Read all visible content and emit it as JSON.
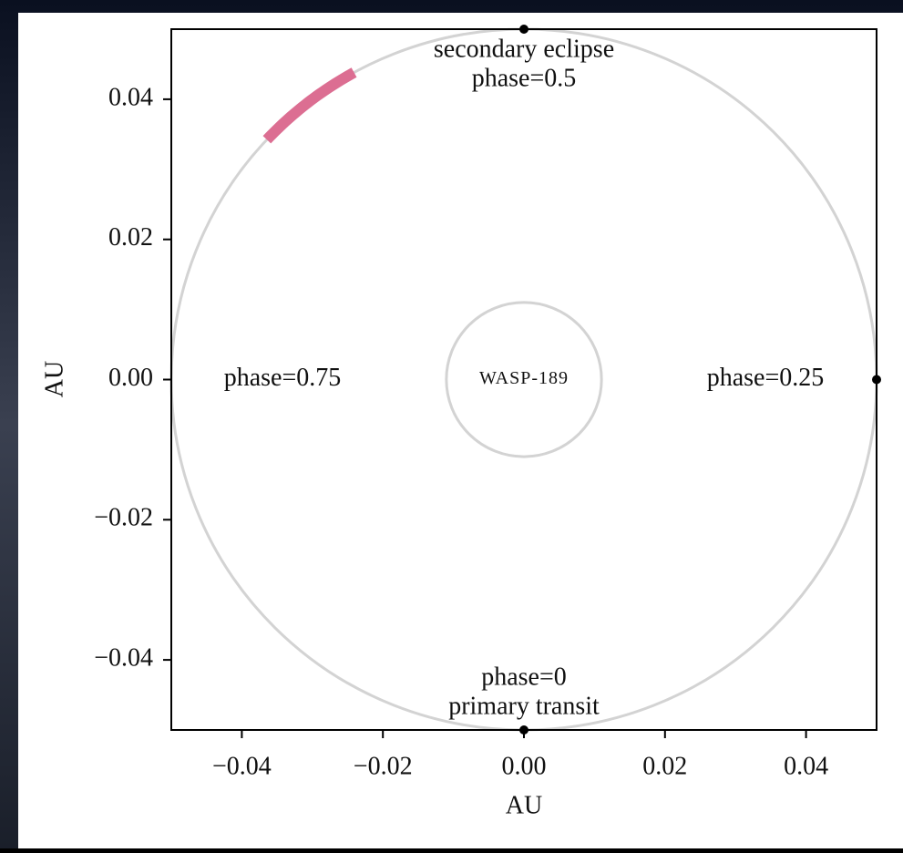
{
  "chart_data": {
    "type": "orbit",
    "xlabel": "AU",
    "ylabel": "AU",
    "xlim": [
      -0.05,
      0.05
    ],
    "ylim": [
      -0.05,
      0.05
    ],
    "xticks": [
      {
        "value": -0.04,
        "label": "−0.04"
      },
      {
        "value": -0.02,
        "label": "−0.02"
      },
      {
        "value": 0,
        "label": "0.00"
      },
      {
        "value": 0.02,
        "label": "0.02"
      },
      {
        "value": 0.04,
        "label": "0.04"
      }
    ],
    "yticks": [
      {
        "value": -0.04,
        "label": "−0.04"
      },
      {
        "value": -0.02,
        "label": "−0.02"
      },
      {
        "value": 0,
        "label": "0.00"
      },
      {
        "value": 0.02,
        "label": "0.02"
      },
      {
        "value": 0.04,
        "label": "0.04"
      }
    ],
    "orbit_radius": 0.05,
    "orbit_color": "#d3d3d3",
    "star_radius": 0.011,
    "star_label": "WASP-189",
    "arc": {
      "phase": [
        0.58,
        0.63
      ],
      "color": "#dc6e92"
    },
    "markers": [
      0,
      0.25,
      0.5
    ],
    "annotations": [
      {
        "phase": 0.5,
        "text": [
          "secondary eclipse",
          "phase=0.5"
        ]
      },
      {
        "phase": 0,
        "text": [
          "phase=0",
          "primary transit"
        ]
      },
      {
        "phase": 0.75,
        "text": [
          "phase=0.75"
        ]
      },
      {
        "phase": 0.25,
        "text": [
          "phase=0.25"
        ]
      }
    ]
  }
}
